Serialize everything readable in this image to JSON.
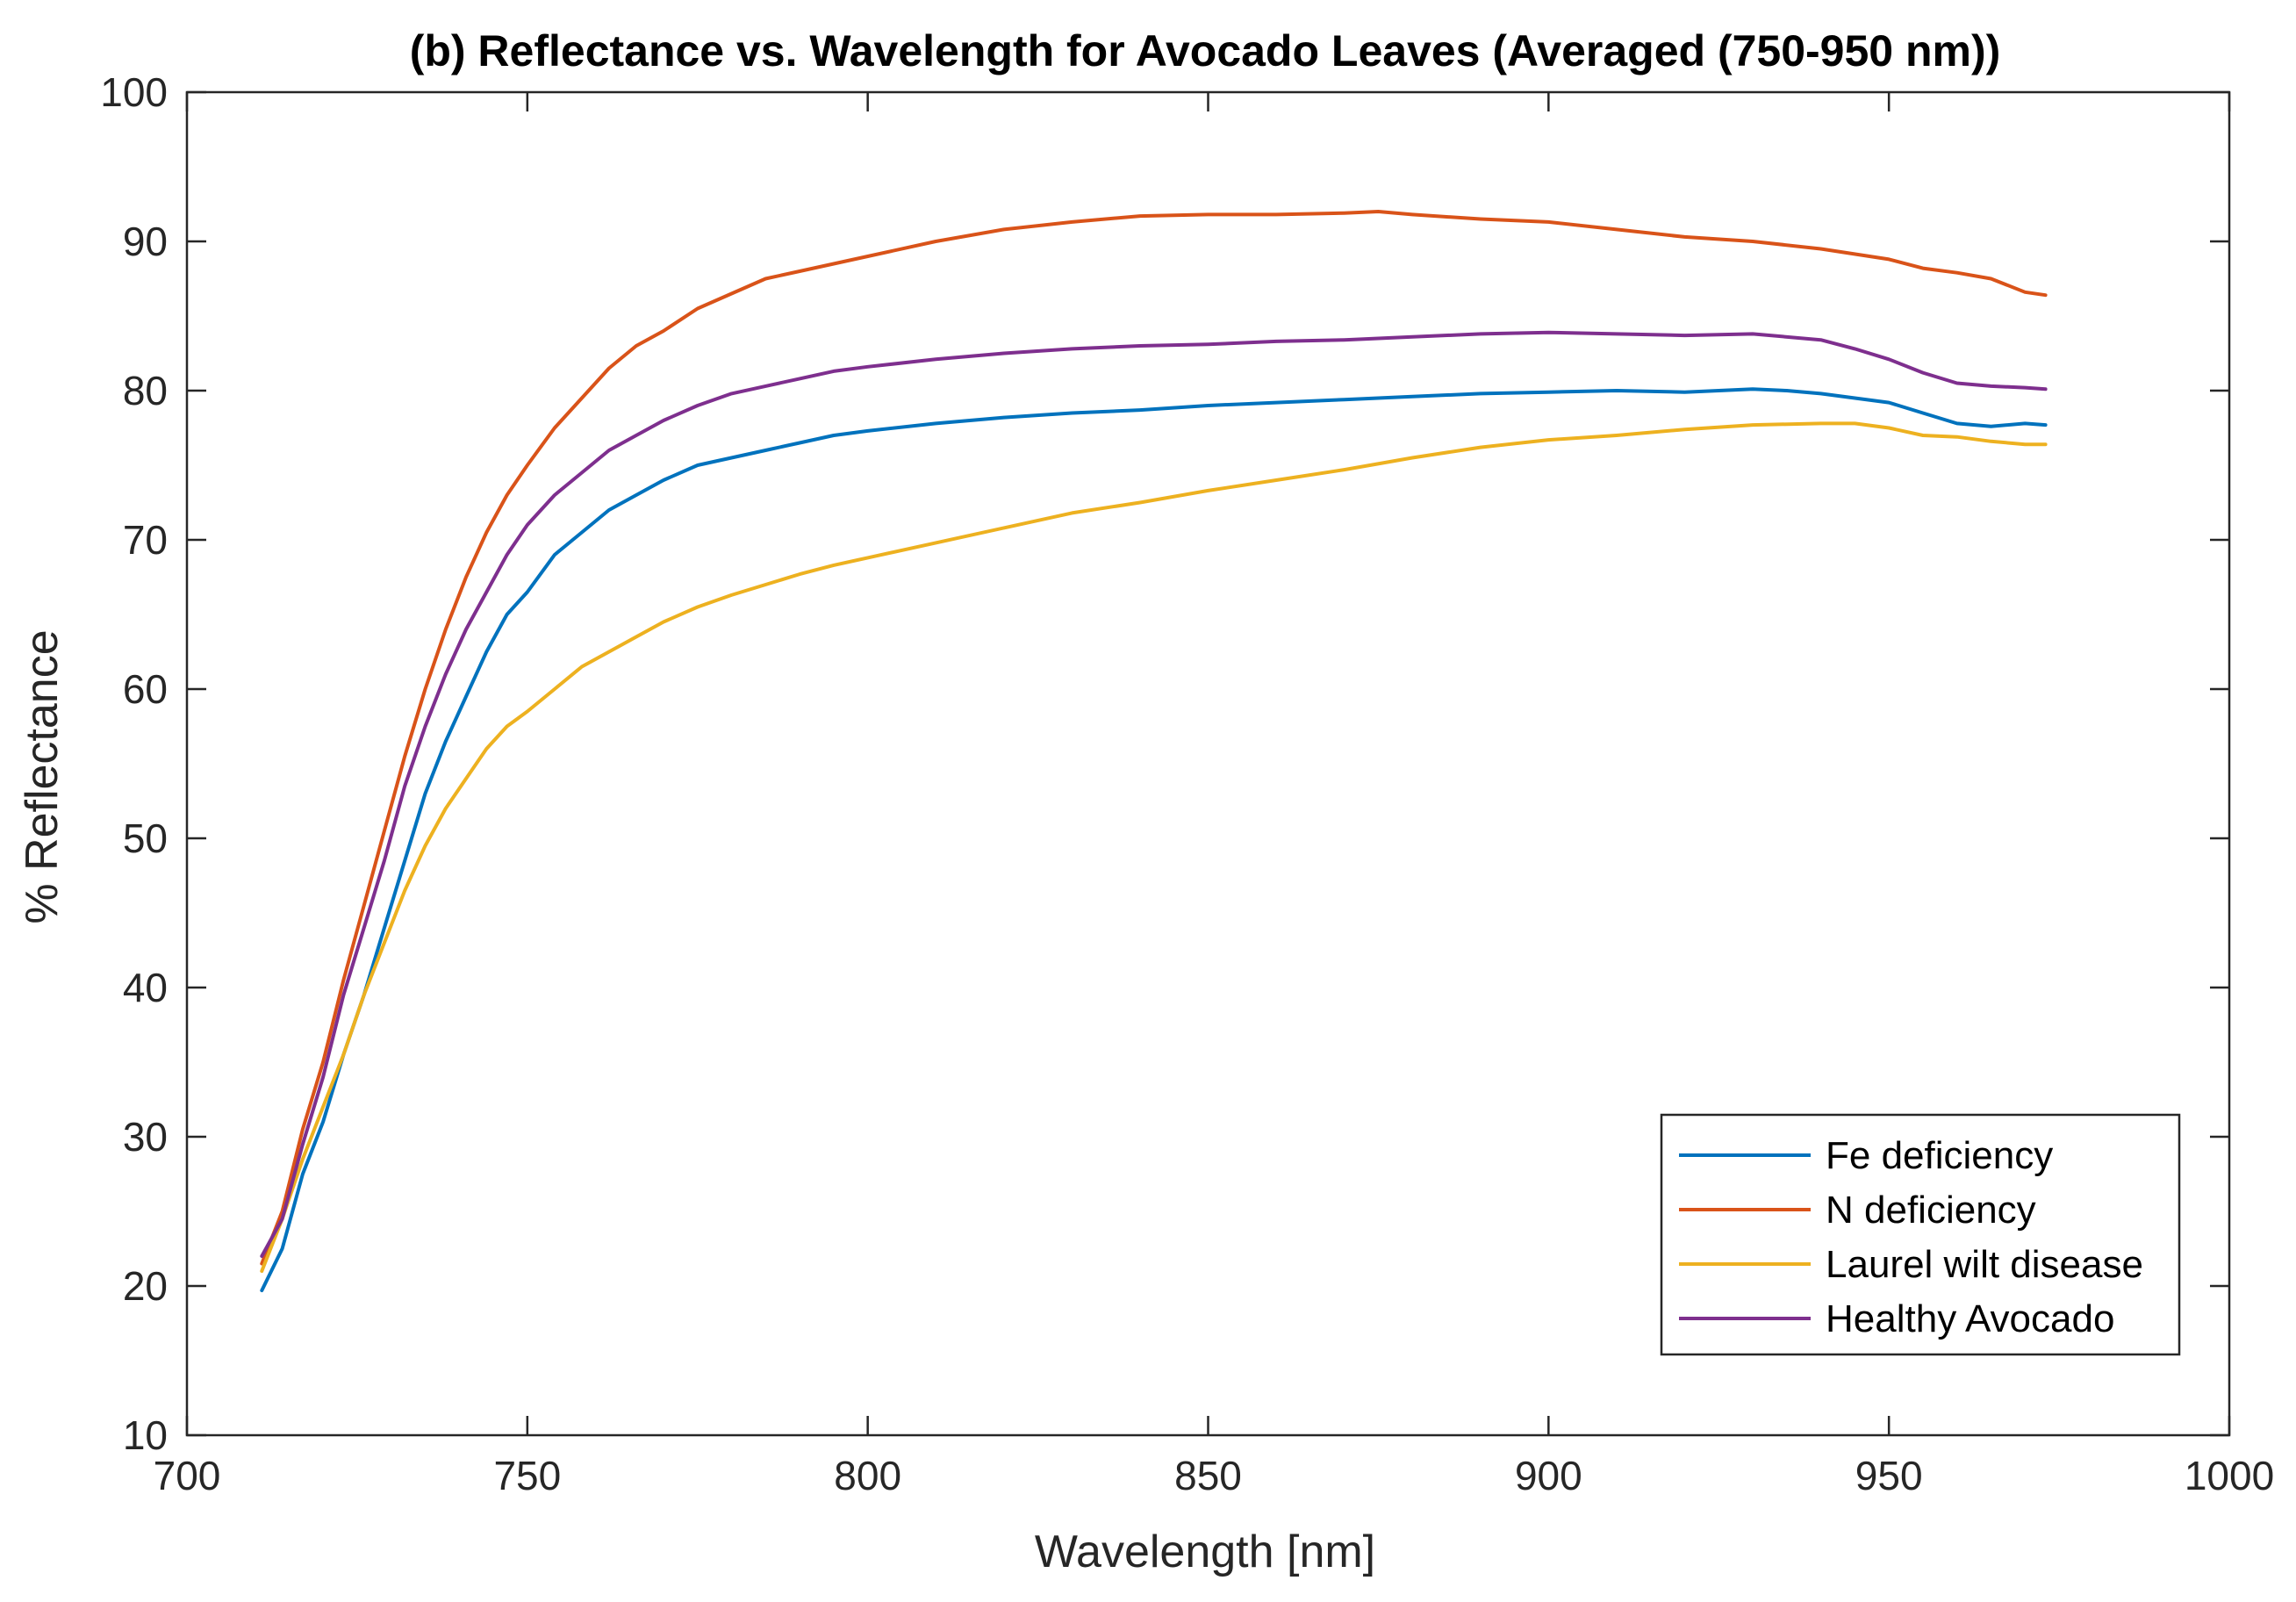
{
  "chart_data": {
    "type": "line",
    "title": "(b) Reflectance vs. Wavelength for Avocado Leaves (Averaged (750-950 nm))",
    "xlabel": "Wavelength [nm]",
    "ylabel": "% Reflectance",
    "xlim": [
      700,
      1000
    ],
    "ylim": [
      10,
      100
    ],
    "xticks": [
      700,
      750,
      800,
      850,
      900,
      950,
      1000
    ],
    "yticks": [
      10,
      20,
      30,
      40,
      50,
      60,
      70,
      80,
      90,
      100
    ],
    "grid": false,
    "legend_position": "bottom-right",
    "series": [
      {
        "name": "Fe deficiency",
        "color": "#0072BD",
        "x": [
          711,
          714,
          717,
          720,
          723,
          726,
          729,
          732,
          735,
          738,
          741,
          744,
          747,
          750,
          754,
          758,
          762,
          766,
          770,
          775,
          780,
          785,
          790,
          795,
          800,
          810,
          820,
          830,
          840,
          850,
          860,
          870,
          880,
          890,
          900,
          910,
          920,
          925,
          930,
          935,
          940,
          945,
          950,
          955,
          960,
          965,
          970,
          973
        ],
        "y": [
          19.7,
          22.5,
          27.5,
          31.0,
          35.5,
          39.5,
          44.0,
          48.5,
          53.0,
          56.5,
          59.5,
          62.5,
          65.0,
          66.5,
          69.0,
          70.5,
          72.0,
          73.0,
          74.0,
          75.0,
          75.5,
          76.0,
          76.5,
          77.0,
          77.3,
          77.8,
          78.2,
          78.5,
          78.7,
          79.0,
          79.2,
          79.4,
          79.6,
          79.8,
          79.9,
          80.0,
          79.9,
          80.0,
          80.1,
          80.0,
          79.8,
          79.5,
          79.2,
          78.5,
          77.8,
          77.6,
          77.8,
          77.7
        ]
      },
      {
        "name": "N deficiency",
        "color": "#D95319",
        "x": [
          711,
          714,
          717,
          720,
          723,
          726,
          729,
          732,
          735,
          738,
          741,
          744,
          747,
          750,
          754,
          758,
          762,
          766,
          770,
          775,
          780,
          785,
          790,
          795,
          800,
          810,
          820,
          830,
          840,
          850,
          860,
          870,
          875,
          880,
          890,
          900,
          910,
          920,
          930,
          940,
          950,
          955,
          960,
          965,
          970,
          973
        ],
        "y": [
          21.5,
          25.0,
          30.5,
          35.0,
          40.5,
          45.5,
          50.5,
          55.5,
          60.0,
          64.0,
          67.5,
          70.5,
          73.0,
          75.0,
          77.5,
          79.5,
          81.5,
          83.0,
          84.0,
          85.5,
          86.5,
          87.5,
          88.0,
          88.5,
          89.0,
          90.0,
          90.8,
          91.3,
          91.7,
          91.8,
          91.8,
          91.9,
          92.0,
          91.8,
          91.5,
          91.3,
          90.8,
          90.3,
          90.0,
          89.5,
          88.8,
          88.2,
          87.9,
          87.5,
          86.6,
          86.4
        ]
      },
      {
        "name": "Laurel wilt disease",
        "color": "#EDB120",
        "x": [
          711,
          714,
          717,
          720,
          723,
          726,
          729,
          732,
          735,
          738,
          741,
          744,
          747,
          750,
          754,
          758,
          762,
          766,
          770,
          775,
          780,
          785,
          790,
          795,
          800,
          810,
          820,
          830,
          840,
          850,
          860,
          870,
          880,
          890,
          900,
          910,
          920,
          930,
          940,
          945,
          950,
          955,
          960,
          965,
          970,
          973
        ],
        "y": [
          21.0,
          24.5,
          28.5,
          32.0,
          35.5,
          39.5,
          43.0,
          46.5,
          49.5,
          52.0,
          54.0,
          56.0,
          57.5,
          58.5,
          60.0,
          61.5,
          62.5,
          63.5,
          64.5,
          65.5,
          66.3,
          67.0,
          67.7,
          68.3,
          68.8,
          69.8,
          70.8,
          71.8,
          72.5,
          73.3,
          74.0,
          74.7,
          75.5,
          76.2,
          76.7,
          77.0,
          77.4,
          77.7,
          77.8,
          77.8,
          77.5,
          77.0,
          76.9,
          76.6,
          76.4,
          76.4
        ]
      },
      {
        "name": "Healthy Avocado",
        "color": "#7E2F8E",
        "x": [
          711,
          714,
          717,
          720,
          723,
          726,
          729,
          732,
          735,
          738,
          741,
          744,
          747,
          750,
          754,
          758,
          762,
          766,
          770,
          775,
          780,
          785,
          790,
          795,
          800,
          810,
          820,
          830,
          840,
          850,
          860,
          870,
          880,
          890,
          900,
          910,
          920,
          930,
          940,
          945,
          950,
          955,
          960,
          965,
          970,
          973
        ],
        "y": [
          22.0,
          24.5,
          29.5,
          34.0,
          39.5,
          44.0,
          48.5,
          53.5,
          57.5,
          61.0,
          64.0,
          66.5,
          69.0,
          71.0,
          73.0,
          74.5,
          76.0,
          77.0,
          78.0,
          79.0,
          79.8,
          80.3,
          80.8,
          81.3,
          81.6,
          82.1,
          82.5,
          82.8,
          83.0,
          83.1,
          83.3,
          83.4,
          83.6,
          83.8,
          83.9,
          83.8,
          83.7,
          83.8,
          83.4,
          82.8,
          82.1,
          81.2,
          80.5,
          80.3,
          80.2,
          80.1
        ]
      }
    ]
  }
}
